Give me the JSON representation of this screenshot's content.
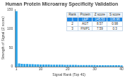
{
  "chart_data": {
    "type": "bar",
    "title": "Human Protein Microarray Specificity Validation",
    "x_label": "Signal Rank (Top 40)",
    "y_label": "Strength of Signal (Z score)",
    "categories": [
      "1",
      null,
      null,
      null,
      null,
      null,
      null,
      null,
      null,
      "10",
      null,
      null,
      null,
      null,
      null,
      null,
      null,
      null,
      null,
      "20",
      null,
      null,
      null,
      null,
      null,
      null,
      null,
      null,
      null,
      "30",
      null,
      null,
      null,
      null,
      null,
      null,
      null,
      null,
      null,
      "40"
    ],
    "values": [
      145.53,
      8.57,
      7.59,
      7.1,
      6.8,
      6.5,
      6.3,
      6.1,
      5.9,
      5.8,
      5.6,
      5.5,
      5.4,
      5.3,
      5.2,
      5.1,
      5.0,
      4.9,
      4.8,
      4.7,
      4.6,
      4.5,
      4.5,
      4.4,
      4.3,
      4.2,
      4.2,
      4.1,
      4.0,
      4.0,
      3.9,
      3.9,
      3.8,
      3.7,
      3.7,
      3.6,
      3.6,
      3.5,
      3.5,
      3.4
    ],
    "color": "#29a3e8",
    "ylim": [
      0,
      150
    ],
    "yticks": [
      0,
      50,
      100,
      150
    ],
    "grid": false,
    "table": {
      "header": [
        "Rank",
        "Protein",
        "Z score",
        "S score"
      ],
      "rows": [
        [
          "1",
          "LEP",
          "145.53",
          "136.96"
        ],
        [
          "2",
          "AGT",
          "8.57",
          "0.98"
        ],
        [
          "3",
          "FNIP1",
          "7.59",
          "0.3"
        ]
      ]
    }
  }
}
